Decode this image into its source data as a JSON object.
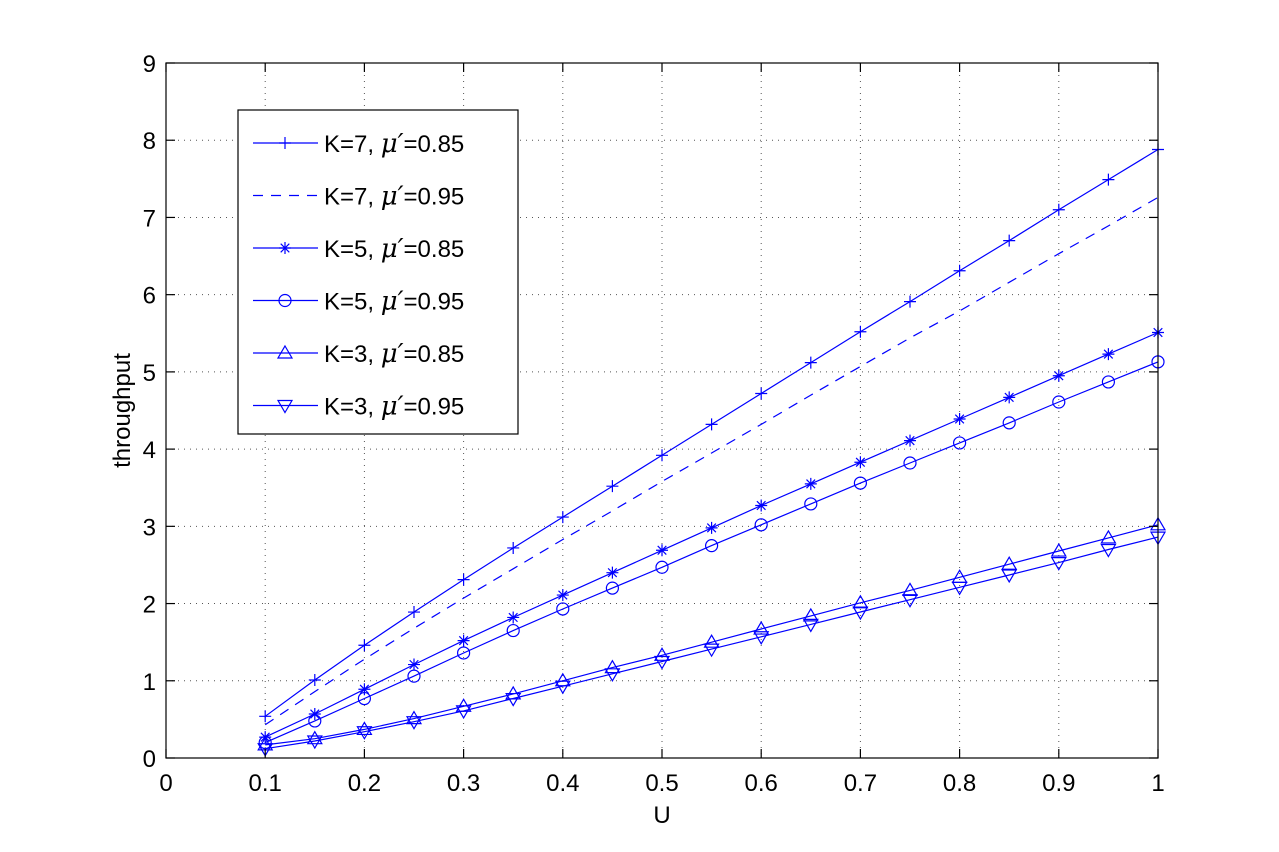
{
  "chart_data": {
    "type": "line",
    "title": "",
    "xlabel": "U",
    "ylabel": "throughput",
    "xlim": [
      0,
      1
    ],
    "ylim": [
      0,
      9
    ],
    "xticks": [
      0,
      0.1,
      0.2,
      0.3,
      0.4,
      0.5,
      0.6,
      0.7,
      0.8,
      0.9,
      1
    ],
    "xtick_labels": [
      "0",
      "0.1",
      "0.2",
      "0.3",
      "0.4",
      "0.5",
      "0.6",
      "0.7",
      "0.8",
      "0.9",
      "1"
    ],
    "yticks": [
      0,
      1,
      2,
      3,
      4,
      5,
      6,
      7,
      8,
      9
    ],
    "ytick_labels": [
      "0",
      "1",
      "2",
      "3",
      "4",
      "5",
      "6",
      "7",
      "8",
      "9"
    ],
    "grid": true,
    "grid_style": "dotted",
    "legend_position": "top-left",
    "color": "#0000ff",
    "x": [
      0.1,
      0.15,
      0.2,
      0.25,
      0.3,
      0.35,
      0.4,
      0.45,
      0.5,
      0.55,
      0.6,
      0.65,
      0.7,
      0.75,
      0.8,
      0.85,
      0.9,
      0.95,
      1.0
    ],
    "series": [
      {
        "name": "K=7, μ′=0.85",
        "label_prefix": "K=7, ",
        "label_suffix": "=0.85",
        "marker": "plus",
        "linestyle": "solid",
        "values": [
          0.54,
          1.01,
          1.46,
          1.89,
          2.31,
          2.72,
          3.12,
          3.52,
          3.92,
          4.32,
          4.72,
          5.12,
          5.52,
          5.91,
          6.31,
          6.7,
          7.1,
          7.49,
          7.88
        ]
      },
      {
        "name": "K=7, μ′=0.95",
        "label_prefix": "K=7, ",
        "label_suffix": "=0.95",
        "marker": "none",
        "linestyle": "dashed",
        "values": [
          0.43,
          0.86,
          1.28,
          1.68,
          2.07,
          2.45,
          2.83,
          3.2,
          3.58,
          3.95,
          4.32,
          4.7,
          5.07,
          5.44,
          5.79,
          6.16,
          6.53,
          6.89,
          7.26
        ]
      },
      {
        "name": "K=5, μ′=0.85",
        "label_prefix": "K=5, ",
        "label_suffix": "=0.85",
        "marker": "star",
        "linestyle": "solid",
        "values": [
          0.27,
          0.57,
          0.89,
          1.21,
          1.52,
          1.82,
          2.11,
          2.4,
          2.69,
          2.98,
          3.27,
          3.55,
          3.83,
          4.11,
          4.39,
          4.67,
          4.95,
          5.23,
          5.51
        ]
      },
      {
        "name": "K=5, μ′=0.95",
        "label_prefix": "K=5, ",
        "label_suffix": "=0.95",
        "marker": "circle",
        "linestyle": "solid",
        "values": [
          0.2,
          0.48,
          0.77,
          1.06,
          1.36,
          1.65,
          1.93,
          2.2,
          2.47,
          2.75,
          3.02,
          3.29,
          3.56,
          3.82,
          4.08,
          4.34,
          4.61,
          4.87,
          5.13
        ]
      },
      {
        "name": "K=3, μ′=0.85",
        "label_prefix": "K=3, ",
        "label_suffix": "=0.85",
        "marker": "triangle-up",
        "linestyle": "solid",
        "values": [
          0.17,
          0.25,
          0.37,
          0.51,
          0.67,
          0.83,
          1.0,
          1.17,
          1.33,
          1.5,
          1.67,
          1.84,
          2.01,
          2.17,
          2.34,
          2.51,
          2.68,
          2.85,
          3.02
        ]
      },
      {
        "name": "K=3, μ′=0.95",
        "label_prefix": "K=3, ",
        "label_suffix": "=0.95",
        "marker": "triangle-down",
        "linestyle": "solid",
        "values": [
          0.12,
          0.22,
          0.34,
          0.47,
          0.61,
          0.77,
          0.93,
          1.09,
          1.25,
          1.41,
          1.57,
          1.73,
          1.89,
          2.05,
          2.21,
          2.37,
          2.53,
          2.7,
          2.86
        ]
      }
    ]
  }
}
